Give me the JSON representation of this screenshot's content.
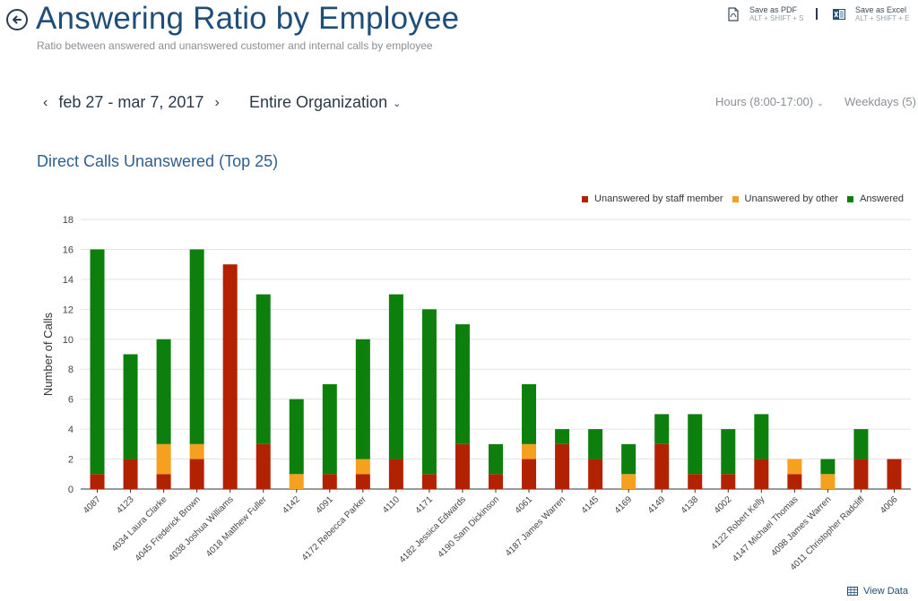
{
  "header": {
    "title": "Answering Ratio by Employee",
    "subtitle": "Ratio between answered and unanswered customer and internal calls by employee"
  },
  "exports": {
    "pdf": {
      "label": "Save as PDF",
      "shortcut": "ALT + SHIFT + S"
    },
    "excel": {
      "label": "Save as Excel",
      "shortcut": "ALT + SHIFT + E"
    }
  },
  "filters": {
    "date_range": "feb 27 - mar 7, 2017",
    "organization": "Entire Organization",
    "hours": "Hours (8:00-17:00)",
    "weekdays": "Weekdays (5)"
  },
  "view_data_label": "View Data",
  "colors": {
    "staff": "#b22200",
    "other": "#f5a01e",
    "answered": "#0d7f0d"
  },
  "chart_data": {
    "type": "bar",
    "stacked": true,
    "title": "Direct Calls Unanswered (Top 25)",
    "ylabel": "Number of Calls",
    "xlabel": "",
    "ylim": [
      0,
      18
    ],
    "yticks": [
      0,
      2,
      4,
      6,
      8,
      10,
      12,
      14,
      16,
      18
    ],
    "legend_position": "top-right",
    "categories": [
      "4087",
      "4123",
      "4034 Laura Clarke",
      "4045 Frederick Brown",
      "4038 Joshua Williams",
      "4018 Matthew Fuller",
      "4142",
      "4091",
      "4172 Rebecca Parker",
      "4110",
      "4171",
      "4182 Jessica Edwards",
      "4190 Sam Dickinson",
      "4061",
      "4187 James Warren",
      "4145",
      "4169",
      "4149",
      "4138",
      "4002",
      "4122 Robert Kelly",
      "4147 Michael Thomas",
      "4098 James Warren",
      "4011 Christopher Radcliff",
      "4006"
    ],
    "series": [
      {
        "name": "Unanswered by staff member",
        "color_key": "staff",
        "values": [
          1,
          2,
          1,
          2,
          15,
          3,
          0,
          1,
          1,
          2,
          1,
          3,
          1,
          2,
          3,
          2,
          0,
          3,
          1,
          1,
          2,
          1,
          0,
          2,
          2
        ]
      },
      {
        "name": "Unanswered by other",
        "color_key": "other",
        "values": [
          0,
          0,
          2,
          1,
          0,
          0,
          1,
          0,
          1,
          0,
          0,
          0,
          0,
          1,
          0,
          0,
          1,
          0,
          0,
          0,
          0,
          1,
          1,
          0,
          0
        ]
      },
      {
        "name": "Answered",
        "color_key": "answered",
        "values": [
          15,
          7,
          7,
          13,
          0,
          10,
          5,
          6,
          8,
          11,
          11,
          8,
          2,
          4,
          1,
          2,
          2,
          2,
          4,
          3,
          3,
          0,
          1,
          2,
          0
        ]
      }
    ]
  }
}
